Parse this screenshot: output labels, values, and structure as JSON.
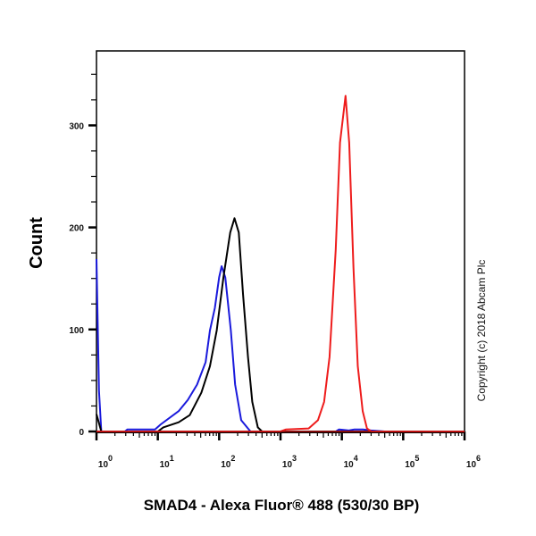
{
  "chart_data": {
    "type": "line",
    "title": "",
    "xlabel": "SMAD4 - Alexa Fluor® 488 (530/30 BP)",
    "ylabel": "Count",
    "x_scale": "log",
    "xlim": [
      1,
      1000000
    ],
    "ylim": [
      0,
      373
    ],
    "grid": false,
    "legend": "none",
    "y_ticks": [
      0,
      100,
      200,
      300
    ],
    "y_tick_labels": [
      "0",
      "100",
      "200",
      "300"
    ],
    "x_ticks": [
      1,
      10,
      100,
      1000,
      10000,
      100000,
      1000000
    ],
    "x_tick_labels": [
      {
        "base": "10",
        "exp": "0"
      },
      {
        "base": "10",
        "exp": "1"
      },
      {
        "base": "10",
        "exp": "2"
      },
      {
        "base": "10",
        "exp": "3"
      },
      {
        "base": "10",
        "exp": "4"
      },
      {
        "base": "10",
        "exp": "5"
      },
      {
        "base": "10",
        "exp": "6"
      }
    ],
    "series": [
      {
        "color": "#1a1adc",
        "points": [
          [
            1,
            169
          ],
          [
            1.1,
            40
          ],
          [
            1.2,
            0
          ],
          [
            2.9,
            0
          ],
          [
            3.2,
            2
          ],
          [
            9,
            2
          ],
          [
            11.2,
            7
          ],
          [
            21.9,
            20
          ],
          [
            30.9,
            31
          ],
          [
            43.6,
            46
          ],
          [
            60.3,
            68
          ],
          [
            70.8,
            99
          ],
          [
            85.1,
            121
          ],
          [
            100,
            151
          ],
          [
            109.6,
            162
          ],
          [
            125.9,
            151
          ],
          [
            154.9,
            99
          ],
          [
            182,
            46
          ],
          [
            229,
            11
          ],
          [
            323.6,
            0
          ],
          [
            8000,
            0
          ],
          [
            9000,
            2
          ],
          [
            13000,
            1
          ],
          [
            16000,
            2
          ],
          [
            22000,
            2
          ],
          [
            30000,
            1
          ],
          [
            50000,
            0
          ],
          [
            1000000,
            0
          ]
        ]
      },
      {
        "color": "#000000",
        "points": [
          [
            1,
            17
          ],
          [
            1.2,
            0
          ],
          [
            10,
            0
          ],
          [
            12.3,
            4
          ],
          [
            21.9,
            9
          ],
          [
            33.1,
            16
          ],
          [
            51.3,
            38
          ],
          [
            70.8,
            64
          ],
          [
            91.2,
            99
          ],
          [
            117.5,
            151
          ],
          [
            151.4,
            195
          ],
          [
            177.8,
            209
          ],
          [
            208.9,
            195
          ],
          [
            245.5,
            134
          ],
          [
            295.1,
            73
          ],
          [
            346.7,
            29
          ],
          [
            426.6,
            4
          ],
          [
            501.2,
            0
          ],
          [
            1000000,
            0
          ]
        ]
      },
      {
        "color": "#ee1c1c",
        "points": [
          [
            1,
            0
          ],
          [
            1000,
            0
          ],
          [
            1230,
            2
          ],
          [
            2880,
            3
          ],
          [
            4070,
            11
          ],
          [
            5130,
            29
          ],
          [
            6310,
            73
          ],
          [
            7940,
            178
          ],
          [
            9330,
            283
          ],
          [
            11480,
            329
          ],
          [
            13180,
            283
          ],
          [
            15490,
            160
          ],
          [
            18200,
            64
          ],
          [
            21880,
            20
          ],
          [
            25700,
            3
          ],
          [
            30200,
            0
          ],
          [
            1000000,
            0
          ]
        ]
      }
    ]
  },
  "copyright": "Copyright (c) 2018 Abcam Plc"
}
